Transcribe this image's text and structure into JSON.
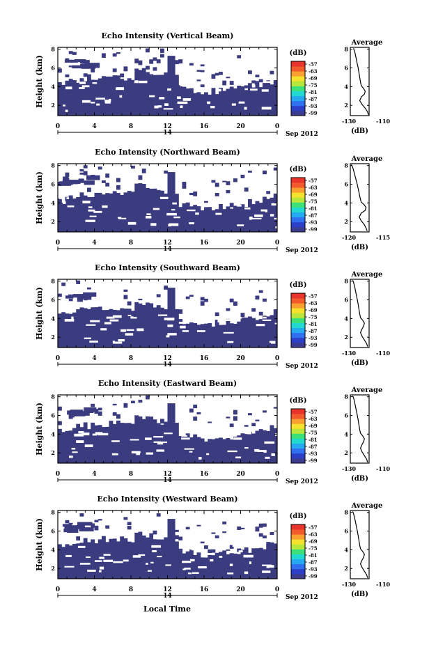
{
  "figure": {
    "footer_xlabel": "Local Time",
    "date_center": "14",
    "date_suffix": "Sep 2012",
    "colorbar_unit": "(dB)",
    "colorbar_ticks": [
      "-57",
      "-63",
      "-69",
      "-75",
      "-81",
      "-87",
      "-93",
      "-99"
    ],
    "colorbar_colors": [
      "#3b3b8f",
      "#2b3fc7",
      "#2f6ff0",
      "#25a9f0",
      "#22d9d0",
      "#3ee07a",
      "#b8e63a",
      "#f4e22c",
      "#f9a030",
      "#f25a2c",
      "#e8342a"
    ],
    "no_data_color": "#ffffff",
    "heatmap_fill_color": "#3b3b80"
  },
  "chart_data": [
    {
      "type": "heatmap",
      "title": "Echo Intensity (Vertical Beam)",
      "ylabel": "Height (km)",
      "x_ticks": [
        "0",
        "4",
        "8",
        "12",
        "16",
        "20",
        "0"
      ],
      "y_ticks": [
        "2",
        "4",
        "6",
        "8"
      ],
      "xlim": [
        0,
        24
      ],
      "ylim": [
        0.9,
        8.2
      ],
      "profile": {
        "type": "line",
        "title": "Average",
        "xlabel": "(dB)",
        "x_ticks": [
          "-130",
          "-110"
        ],
        "xlim": [
          -132,
          -108
        ],
        "y_ticks": [
          "2",
          "4",
          "6",
          "8"
        ],
        "x": [
          -109,
          -110,
          -113,
          -117,
          -120,
          -118,
          -114,
          -113,
          -115,
          -118,
          -119,
          -120,
          -121,
          -122,
          -123,
          -124,
          -125,
          -126,
          -127,
          -128
        ],
        "y": [
          1.0,
          1.3,
          1.7,
          2.1,
          2.5,
          2.9,
          3.2,
          3.5,
          3.8,
          4.1,
          4.5,
          5.0,
          5.5,
          6.0,
          6.4,
          6.8,
          7.2,
          7.6,
          7.9,
          8.1
        ]
      },
      "sparsity": 0.7
    },
    {
      "type": "heatmap",
      "title": "Echo Intensity (Northward Beam)",
      "ylabel": "Height (km)",
      "x_ticks": [
        "0",
        "4",
        "8",
        "12",
        "16",
        "20",
        "0"
      ],
      "y_ticks": [
        "2",
        "4",
        "6",
        "8"
      ],
      "xlim": [
        0,
        24
      ],
      "ylim": [
        0.9,
        8.2
      ],
      "profile": {
        "type": "line",
        "title": "Average",
        "xlabel": "(dB)",
        "x_ticks": [
          "-120",
          "-115"
        ],
        "xlim": [
          -121.5,
          -112
        ],
        "y_ticks": [
          "2",
          "4",
          "6",
          "8"
        ],
        "x": [
          -113,
          -113.5,
          -114.5,
          -116,
          -117,
          -116,
          -114,
          -113.5,
          -114.5,
          -116,
          -116.5,
          -117,
          -117.5,
          -118,
          -118.5,
          -119,
          -119.5,
          -120,
          -120.5,
          -121
        ],
        "y": [
          1.0,
          1.3,
          1.7,
          2.1,
          2.5,
          2.9,
          3.2,
          3.5,
          3.8,
          4.1,
          4.5,
          5.0,
          5.5,
          6.0,
          6.4,
          6.8,
          7.2,
          7.6,
          7.9,
          8.1
        ]
      },
      "sparsity": 0.75
    },
    {
      "type": "heatmap",
      "title": "Echo Intensity (Southward Beam)",
      "ylabel": "Height (km)",
      "x_ticks": [
        "0",
        "4",
        "8",
        "12",
        "16",
        "20",
        "0"
      ],
      "y_ticks": [
        "2",
        "4",
        "6",
        "8"
      ],
      "xlim": [
        0,
        24
      ],
      "ylim": [
        0.9,
        8.2
      ],
      "profile": {
        "type": "line",
        "title": "Average",
        "xlabel": "(dB)",
        "x_ticks": [
          "-130",
          "-110"
        ],
        "xlim": [
          -132,
          -108
        ],
        "y_ticks": [
          "2",
          "4",
          "6",
          "8"
        ],
        "x": [
          -110,
          -111,
          -114,
          -117,
          -119,
          -117,
          -115,
          -114,
          -116,
          -119,
          -120,
          -121,
          -122,
          -123,
          -124,
          -125,
          -126,
          -127,
          -128,
          -129
        ],
        "y": [
          1.0,
          1.3,
          1.7,
          2.1,
          2.5,
          2.9,
          3.2,
          3.5,
          3.8,
          4.1,
          4.5,
          5.0,
          5.5,
          6.0,
          6.4,
          6.8,
          7.2,
          7.6,
          7.9,
          8.1
        ]
      },
      "sparsity": 0.78
    },
    {
      "type": "heatmap",
      "title": "Echo Intensity (Eastward Beam)",
      "ylabel": "Height (km)",
      "x_ticks": [
        "0",
        "4",
        "8",
        "12",
        "16",
        "20",
        "0"
      ],
      "y_ticks": [
        "2",
        "4",
        "6",
        "8"
      ],
      "xlim": [
        0,
        24
      ],
      "ylim": [
        0.9,
        8.2
      ],
      "profile": {
        "type": "line",
        "title": "Average",
        "xlabel": "(dB)",
        "x_ticks": [
          "-130",
          "-110"
        ],
        "xlim": [
          -132,
          -108
        ],
        "y_ticks": [
          "2",
          "4",
          "6",
          "8"
        ],
        "x": [
          -110,
          -111,
          -114,
          -117,
          -119,
          -117,
          -115,
          -114,
          -116,
          -119,
          -120,
          -121,
          -122,
          -123,
          -124,
          -125,
          -126,
          -127,
          -128,
          -129
        ],
        "y": [
          1.0,
          1.3,
          1.7,
          2.1,
          2.5,
          2.9,
          3.2,
          3.5,
          3.8,
          4.1,
          4.5,
          5.0,
          5.5,
          6.0,
          6.4,
          6.8,
          7.2,
          7.6,
          7.9,
          8.1
        ]
      },
      "sparsity": 0.8
    },
    {
      "type": "heatmap",
      "title": "Echo Intensity (Westward Beam)",
      "ylabel": "Height (km)",
      "x_ticks": [
        "0",
        "4",
        "8",
        "12",
        "16",
        "20",
        "0"
      ],
      "y_ticks": [
        "2",
        "4",
        "6",
        "8"
      ],
      "xlim": [
        0,
        24
      ],
      "ylim": [
        0.9,
        8.2
      ],
      "profile": {
        "type": "line",
        "title": "Average",
        "xlabel": "(dB)",
        "x_ticks": [
          "-130",
          "-110"
        ],
        "xlim": [
          -132,
          -108
        ],
        "y_ticks": [
          "2",
          "4",
          "6",
          "8"
        ],
        "x": [
          -110,
          -111,
          -114,
          -117,
          -119,
          -117,
          -115,
          -114,
          -116,
          -119,
          -120,
          -121,
          -122,
          -123,
          -124,
          -125,
          -126,
          -127,
          -128,
          -129
        ],
        "y": [
          1.0,
          1.3,
          1.7,
          2.1,
          2.5,
          2.9,
          3.2,
          3.5,
          3.8,
          4.1,
          4.5,
          5.0,
          5.5,
          6.0,
          6.4,
          6.8,
          7.2,
          7.6,
          7.9,
          8.1
        ]
      },
      "sparsity": 0.76
    }
  ]
}
